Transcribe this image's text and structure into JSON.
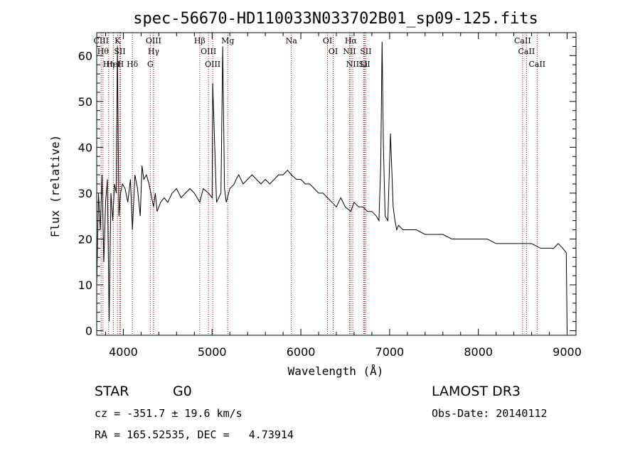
{
  "chart_data": {
    "type": "line",
    "title": "spec-56670-HD110033N033702B01_sp09-125.fits",
    "xlabel": "Wavelength (Å)",
    "ylabel": "Flux (relative)",
    "xlim": [
      3700,
      9100
    ],
    "ylim": [
      -1,
      65
    ],
    "xticks": [
      4000,
      5000,
      6000,
      7000,
      8000,
      9000
    ],
    "yticks": [
      0,
      10,
      20,
      30,
      40,
      50,
      60
    ],
    "grid": false,
    "series": [
      {
        "name": "flux",
        "x": [
          3700,
          3720,
          3740,
          3760,
          3780,
          3800,
          3820,
          3840,
          3860,
          3880,
          3900,
          3920,
          3933,
          3950,
          3968,
          3990,
          4020,
          4050,
          4080,
          4102,
          4130,
          4160,
          4190,
          4210,
          4230,
          4260,
          4290,
          4310,
          4340,
          4360,
          4380,
          4420,
          4460,
          4500,
          4550,
          4600,
          4650,
          4700,
          4750,
          4800,
          4861,
          4900,
          4959,
          5000,
          5007,
          5050,
          5100,
          5120,
          5140,
          5160,
          5200,
          5250,
          5270,
          5300,
          5350,
          5400,
          5450,
          5500,
          5550,
          5600,
          5650,
          5700,
          5750,
          5800,
          5850,
          5893,
          5950,
          6000,
          6050,
          6100,
          6150,
          6200,
          6250,
          6300,
          6350,
          6400,
          6450,
          6500,
          6563,
          6600,
          6650,
          6700,
          6750,
          6800,
          6850,
          6880,
          6900,
          6915,
          6930,
          6950,
          6980,
          7010,
          7040,
          7060,
          7080,
          7100,
          7150,
          7200,
          7300,
          7400,
          7500,
          7600,
          7700,
          7800,
          7900,
          8000,
          8100,
          8200,
          8300,
          8400,
          8500,
          8600,
          8700,
          8800,
          8850,
          8900,
          8950,
          8990,
          9000
        ],
        "y": [
          10,
          30,
          22,
          34,
          15,
          28,
          33,
          2,
          30,
          24,
          32,
          30,
          62,
          25,
          30,
          32,
          31,
          28,
          33,
          22,
          34,
          31,
          25,
          36,
          33,
          34,
          32,
          30,
          27,
          30,
          26,
          28,
          29,
          28,
          30,
          31,
          29,
          30,
          31,
          30,
          28,
          31,
          30,
          29,
          54,
          28,
          30,
          62,
          31,
          28,
          31,
          32,
          33,
          34,
          32,
          33,
          34,
          33,
          32,
          33,
          32,
          33,
          34,
          34,
          35,
          34,
          33,
          33,
          32,
          32,
          31,
          30,
          30,
          29,
          28,
          27,
          29,
          27,
          26,
          28,
          27,
          27,
          26,
          26,
          25,
          24,
          36,
          63,
          40,
          25,
          24,
          43,
          27,
          24,
          22,
          23,
          22,
          22,
          22,
          21,
          21,
          21,
          20,
          20,
          20,
          20,
          20,
          19,
          19,
          19,
          19,
          19,
          18,
          18,
          18,
          19,
          18,
          17,
          0
        ]
      }
    ],
    "line_markers": [
      {
        "label": "CIII",
        "x": 3750
      },
      {
        "label": "Hθ",
        "x": 3771
      },
      {
        "label": "Hη",
        "x": 3835
      },
      {
        "label": "HeI",
        "x": 3889
      },
      {
        "label": "K",
        "x": 3934
      },
      {
        "label": "SII",
        "x": 3960
      },
      {
        "label": "H",
        "x": 3968
      },
      {
        "label": "Hδ",
        "x": 4102
      },
      {
        "label": "OIII",
        "x": 4340
      },
      {
        "label": "Hγ",
        "x": 4341
      },
      {
        "label": "G",
        "x": 4304
      },
      {
        "label": "Hβ",
        "x": 4861
      },
      {
        "label": "OIII",
        "x": 4959
      },
      {
        "label": "OIII",
        "x": 5007
      },
      {
        "label": "Mg",
        "x": 5176
      },
      {
        "label": "Na",
        "x": 5893
      },
      {
        "label": "OI",
        "x": 6300
      },
      {
        "label": "OI",
        "x": 6364
      },
      {
        "label": "Hα",
        "x": 6563
      },
      {
        "label": "NII",
        "x": 6548
      },
      {
        "label": "NII",
        "x": 6584
      },
      {
        "label": "SII",
        "x": 6717
      },
      {
        "label": "Li",
        "x": 6708
      },
      {
        "label": "SII",
        "x": 6731
      },
      {
        "label": "CaII",
        "x": 8498
      },
      {
        "label": "CaII",
        "x": 8542
      },
      {
        "label": "CaII",
        "x": 8662
      }
    ]
  },
  "info": {
    "object_type": "STAR",
    "subclass": "G0",
    "survey": "LAMOST DR3",
    "cz": "cz = -351.7 ± 19.6 km/s",
    "obs_date": "Obs-Date: 20140112",
    "coords": "RA = 165.52535, DEC =   4.73914"
  },
  "colors": {
    "axis": "#000000",
    "spectrum": "#000000",
    "marker": "#b00000"
  }
}
